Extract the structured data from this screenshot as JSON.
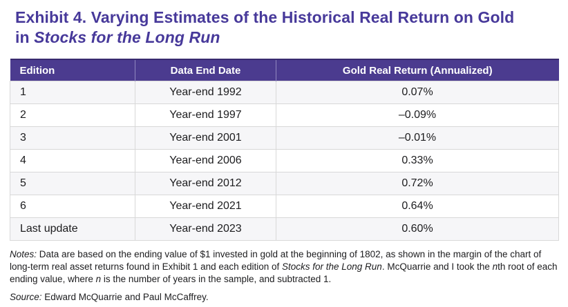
{
  "title": {
    "line1": "Exhibit 4. Varying Estimates of the Historical Real Return on Gold",
    "line2_prefix": "in ",
    "line2_italic": "Stocks for the Long Run"
  },
  "table": {
    "columns": [
      "Edition",
      "Data End Date",
      "Gold Real Return (Annualized)"
    ],
    "rows": [
      {
        "edition": "1",
        "data_end_date": "Year-end 1992",
        "gold_real_return": "0.07%"
      },
      {
        "edition": "2",
        "data_end_date": "Year-end 1997",
        "gold_real_return": "–0.09%"
      },
      {
        "edition": "3",
        "data_end_date": "Year-end 2001",
        "gold_real_return": "–0.01%"
      },
      {
        "edition": "4",
        "data_end_date": "Year-end 2006",
        "gold_real_return": "0.33%"
      },
      {
        "edition": "5",
        "data_end_date": "Year-end 2012",
        "gold_real_return": "0.72%"
      },
      {
        "edition": "6",
        "data_end_date": "Year-end 2021",
        "gold_real_return": "0.64%"
      },
      {
        "edition": "Last update",
        "data_end_date": "Year-end 2023",
        "gold_real_return": "0.60%"
      }
    ]
  },
  "notes": {
    "label": "Notes:",
    "part1": " Data are based on the ending value of $1 invested in gold at the beginning of 1802, as shown in the margin of the chart of long-term real asset returns found in Exhibit 1 and each edition of ",
    "italic1": "Stocks for the Long Run",
    "part2": ". McQuarrie and I took the ",
    "italic2": "n",
    "part3": "th root of each ending value, where ",
    "italic3": "n",
    "part4": " is the number of years in the sample, and subtracted 1."
  },
  "source": {
    "label": "Source:",
    "text": " Edward McQuarrie and Paul McCaffrey."
  },
  "colors": {
    "title_purple": "#47399a",
    "header_bg": "#4b3b8f",
    "header_top_border": "#382a6e",
    "header_text": "#ffffff",
    "row_alt_bg": "#f6f6f8",
    "cell_border": "#d8d8d8",
    "body_text": "#1c1c1e"
  }
}
